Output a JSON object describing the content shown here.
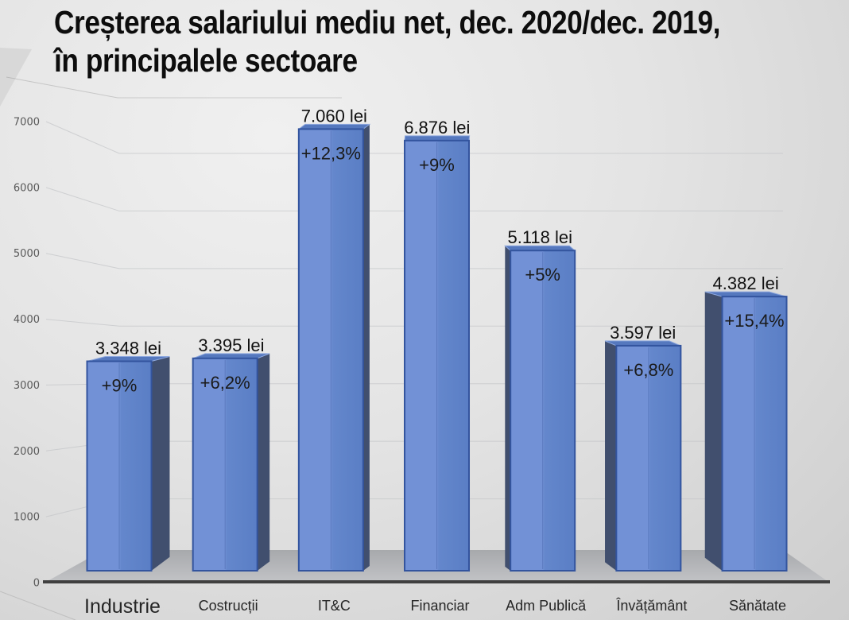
{
  "slide": {
    "title_line1": "Creșterea salariului mediu net, dec. 2020/dec. 2019,",
    "title_line2": "în principalele sectoare"
  },
  "chart_data": {
    "type": "bar",
    "title": "Creșterea salariului mediu net, dec. 2020/dec. 2019, în principalele sectoare",
    "categories": [
      "Industrie",
      "Costrucții",
      "IT&C",
      "Financiar",
      "Adm Publică",
      "Învățământ",
      "Sănătate"
    ],
    "values": [
      3348,
      3395,
      7060,
      6876,
      5118,
      3597,
      4382
    ],
    "value_labels": [
      "3.348 lei",
      "3.395 lei",
      "7.060 lei",
      "6.876 lei",
      "5.118 lei",
      "3.597 lei",
      "4.382 lei"
    ],
    "pct_labels": [
      "+9%",
      "+6,2%",
      "+12,3%",
      "+9%",
      "+5%",
      "+6,8%",
      "+15,4%"
    ],
    "unit": "lei",
    "xlabel": "",
    "ylabel": "",
    "ylim": [
      0,
      7000
    ],
    "yticks": [
      0,
      1000,
      2000,
      3000,
      4000,
      5000,
      6000,
      7000
    ],
    "grid": true,
    "legend": "none",
    "style": "3d-perspective-bars"
  },
  "colors": {
    "bar_front_light": "#7291D6",
    "bar_front": "#6487CC",
    "bar_front_dark": "#5A7EC5",
    "bar_border": "#33549E",
    "bar_side": "#414F6E",
    "bar_top": "#5578BE",
    "bar_top_bevel": "#8FA9DF",
    "floor_back": "#A7A9AC",
    "floor_front": "#C2C3C6",
    "axis_line": "#3F3F3F",
    "gridline": "#C3C5C7",
    "tick_text": "#595959",
    "label_text": "#111111",
    "title_text": "#0D0D0D",
    "background": "#E4E4E4"
  }
}
